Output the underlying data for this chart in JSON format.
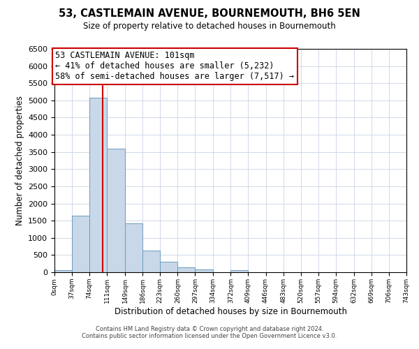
{
  "title": "53, CASTLEMAIN AVENUE, BOURNEMOUTH, BH6 5EN",
  "subtitle": "Size of property relative to detached houses in Bournemouth",
  "xlabel": "Distribution of detached houses by size in Bournemouth",
  "ylabel": "Number of detached properties",
  "bar_color": "#c8d8e8",
  "bar_edge_color": "#6a9bbf",
  "bin_edges": [
    0,
    37,
    74,
    111,
    149,
    186,
    223,
    260,
    297,
    334,
    372,
    409,
    446,
    483,
    520,
    557,
    594,
    632,
    669,
    706,
    743
  ],
  "bar_heights": [
    60,
    1650,
    5080,
    3590,
    1420,
    620,
    300,
    145,
    80,
    0,
    55,
    0,
    0,
    0,
    0,
    0,
    0,
    0,
    0,
    0
  ],
  "property_size": 101,
  "vline_color": "#cc0000",
  "annotation_line1": "53 CASTLEMAIN AVENUE: 101sqm",
  "annotation_line2": "← 41% of detached houses are smaller (5,232)",
  "annotation_line3": "58% of semi-detached houses are larger (7,517) →",
  "annotation_box_color": "#ffffff",
  "annotation_box_edge_color": "#cc0000",
  "ylim": [
    0,
    6500
  ],
  "yticks": [
    0,
    500,
    1000,
    1500,
    2000,
    2500,
    3000,
    3500,
    4000,
    4500,
    5000,
    5500,
    6000,
    6500
  ],
  "tick_labels": [
    "0sqm",
    "37sqm",
    "74sqm",
    "111sqm",
    "149sqm",
    "186sqm",
    "223sqm",
    "260sqm",
    "297sqm",
    "334sqm",
    "372sqm",
    "409sqm",
    "446sqm",
    "483sqm",
    "520sqm",
    "557sqm",
    "594sqm",
    "632sqm",
    "669sqm",
    "706sqm",
    "743sqm"
  ],
  "footer1": "Contains HM Land Registry data © Crown copyright and database right 2024.",
  "footer2": "Contains public sector information licensed under the Open Government Licence v3.0.",
  "background_color": "#ffffff",
  "grid_color": "#d0d8e8",
  "title_fontsize": 10.5,
  "subtitle_fontsize": 8.5,
  "ylabel_fontsize": 8.5,
  "xlabel_fontsize": 8.5,
  "annotation_fontsize": 8.5,
  "ytick_fontsize": 8,
  "xtick_fontsize": 6.5
}
